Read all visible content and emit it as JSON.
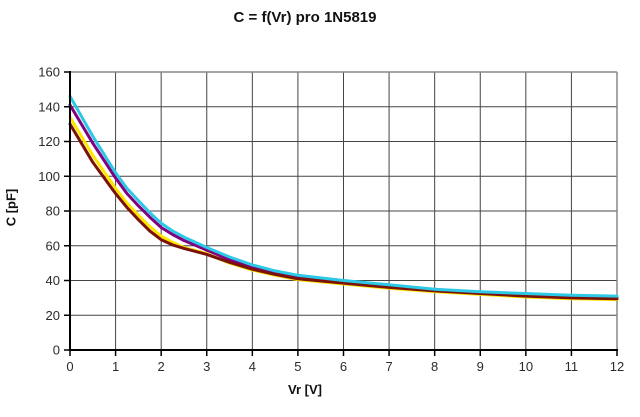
{
  "chart_data": {
    "type": "line",
    "title": "C = f(Vr) pro 1N5819",
    "xlabel": "Vr [V]",
    "ylabel": "C [pF]",
    "xlim": [
      0,
      12
    ],
    "ylim": [
      0,
      160
    ],
    "xticks": [
      0,
      1,
      2,
      3,
      4,
      5,
      6,
      7,
      8,
      9,
      10,
      11,
      12
    ],
    "yticks": [
      0,
      20,
      40,
      60,
      80,
      100,
      120,
      140,
      160
    ],
    "grid": true,
    "legend": "none",
    "grid_color": "#444444",
    "axis_color": "#000000",
    "border_color": "#888888",
    "x": [
      0,
      0.5,
      1,
      1.25,
      1.5,
      1.75,
      2,
      2.25,
      2.5,
      3,
      3.5,
      4,
      4.5,
      5,
      6,
      7,
      8,
      9,
      10,
      11,
      12
    ],
    "series": [
      {
        "name": "series-purple",
        "color": "#800080",
        "values": [
          141,
          119,
          99,
          90,
          83,
          76.5,
          70.5,
          66.5,
          63,
          57.5,
          52,
          47.5,
          44.5,
          42,
          39,
          36.5,
          34.5,
          33,
          31.5,
          30.5,
          30
        ]
      },
      {
        "name": "series-yellow",
        "color": "#FFE600",
        "values": [
          134,
          112,
          93,
          84.5,
          77.5,
          71,
          65.5,
          62,
          59,
          55.5,
          50,
          46,
          43,
          40.5,
          38,
          35.5,
          33.5,
          32,
          30.5,
          29.5,
          29
        ]
      },
      {
        "name": "series-dark-red",
        "color": "#7A1208",
        "values": [
          130,
          108,
          90,
          82,
          75,
          68.5,
          63.5,
          60.5,
          58.5,
          55,
          50.5,
          46.5,
          43.5,
          41,
          38.5,
          36,
          34,
          32.5,
          31,
          30,
          29.5
        ]
      },
      {
        "name": "series-turquoise",
        "color": "#2CC8E6",
        "values": [
          146,
          123,
          102,
          93,
          86,
          79,
          73,
          68.5,
          65,
          59,
          53.5,
          49,
          45.5,
          43,
          40,
          37.5,
          35,
          33.5,
          32.5,
          31.5,
          31
        ]
      }
    ]
  }
}
